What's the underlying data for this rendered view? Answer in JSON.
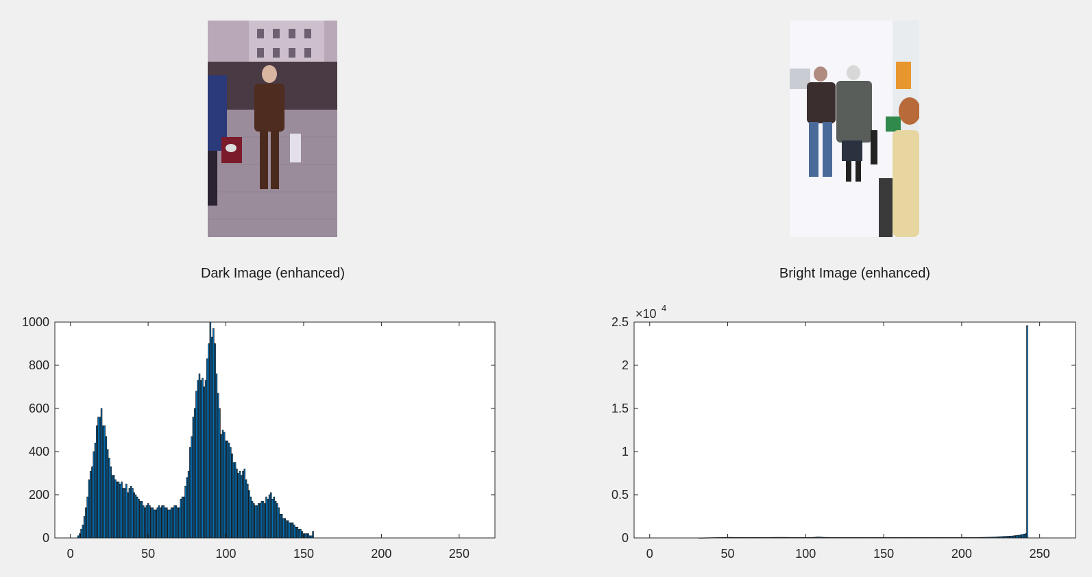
{
  "figure": {
    "subplots": [
      {
        "title": "Dark Image (enhanced)",
        "image": "dark street scene with pedestrians"
      },
      {
        "title": "Bright Image (enhanced)",
        "image": "overexposed street scene with elderly couple walking"
      }
    ]
  },
  "chart_data": [
    {
      "type": "bar",
      "title": "",
      "xlabel": "",
      "ylabel": "",
      "xlim": [
        -10,
        273
      ],
      "ylim": [
        0,
        1000
      ],
      "xticks": [
        0,
        50,
        100,
        150,
        200,
        250
      ],
      "yticks": [
        0,
        200,
        400,
        600,
        800,
        1000
      ],
      "ytick_labels": [
        "0",
        "200",
        "400",
        "600",
        "800",
        "1000"
      ],
      "x_start": 0,
      "values": [
        0,
        0,
        0,
        0,
        0,
        10,
        20,
        40,
        60,
        100,
        140,
        190,
        270,
        310,
        330,
        400,
        440,
        520,
        560,
        560,
        600,
        520,
        520,
        470,
        410,
        370,
        330,
        290,
        290,
        270,
        260,
        260,
        250,
        260,
        230,
        230,
        250,
        210,
        230,
        240,
        230,
        210,
        200,
        190,
        180,
        170,
        170,
        150,
        140,
        150,
        160,
        150,
        140,
        140,
        130,
        130,
        140,
        150,
        140,
        150,
        150,
        140,
        140,
        130,
        130,
        140,
        140,
        150,
        150,
        140,
        140,
        180,
        190,
        190,
        240,
        280,
        310,
        420,
        470,
        560,
        600,
        680,
        730,
        760,
        730,
        740,
        700,
        730,
        830,
        900,
        1000,
        930,
        970,
        900,
        760,
        670,
        600,
        480,
        500,
        490,
        450,
        450,
        440,
        420,
        390,
        350,
        350,
        320,
        300,
        310,
        290,
        310,
        320,
        270,
        250,
        220,
        190,
        170,
        160,
        150,
        150,
        160,
        160,
        170,
        170,
        160,
        190,
        180,
        200,
        210,
        180,
        190,
        170,
        160,
        140,
        110,
        110,
        90,
        90,
        80,
        80,
        70,
        70,
        70,
        60,
        50,
        50,
        40,
        40,
        30,
        20,
        20,
        20,
        20,
        10,
        10,
        30,
        0
      ]
    },
    {
      "type": "bar",
      "title": "",
      "xlabel": "",
      "ylabel": "",
      "y_exponent_label": "×10",
      "y_exponent": "4",
      "xlim": [
        -10,
        273
      ],
      "ylim": [
        0,
        25000
      ],
      "xticks": [
        0,
        50,
        100,
        150,
        200,
        250
      ],
      "yticks": [
        0,
        5000,
        10000,
        15000,
        20000,
        25000
      ],
      "ytick_labels": [
        "0",
        "0.5",
        "1",
        "1.5",
        "2",
        "2.5"
      ],
      "x_start": 0,
      "values": [
        0,
        0,
        0,
        0,
        0,
        0,
        0,
        0,
        0,
        0,
        0,
        0,
        0,
        0,
        0,
        0,
        0,
        0,
        0,
        0,
        0,
        0,
        0,
        0,
        0,
        0,
        0,
        0,
        0,
        0,
        0,
        0,
        10,
        12,
        15,
        20,
        22,
        25,
        30,
        32,
        35,
        40,
        42,
        45,
        48,
        50,
        55,
        58,
        60,
        62,
        80,
        70,
        65,
        64,
        62,
        60,
        58,
        60,
        62,
        60,
        58,
        56,
        55,
        54,
        55,
        56,
        58,
        60,
        62,
        60,
        58,
        56,
        54,
        52,
        50,
        52,
        55,
        58,
        60,
        62,
        64,
        66,
        68,
        70,
        72,
        70,
        68,
        66,
        64,
        62,
        60,
        58,
        56,
        55,
        54,
        53,
        52,
        51,
        50,
        50,
        52,
        54,
        56,
        58,
        60,
        70,
        85,
        100,
        120,
        110,
        95,
        80,
        70,
        65,
        60,
        58,
        56,
        54,
        52,
        50,
        50,
        50,
        50,
        50,
        50,
        50,
        50,
        50,
        50,
        50,
        50,
        50,
        50,
        50,
        50,
        50,
        50,
        50,
        50,
        50,
        50,
        50,
        50,
        50,
        50,
        50,
        50,
        50,
        50,
        50,
        50,
        50,
        50,
        50,
        50,
        50,
        50,
        50,
        50,
        50,
        50,
        50,
        50,
        50,
        50,
        50,
        50,
        50,
        50,
        50,
        50,
        50,
        50,
        50,
        50,
        50,
        50,
        50,
        50,
        50,
        50,
        50,
        50,
        50,
        50,
        50,
        50,
        50,
        50,
        50,
        50,
        50,
        50,
        50,
        50,
        50,
        50,
        50,
        50,
        50,
        50,
        50,
        50,
        50,
        50,
        50,
        50,
        50,
        50,
        50,
        50,
        55,
        60,
        65,
        70,
        75,
        80,
        85,
        90,
        95,
        100,
        110,
        120,
        130,
        140,
        150,
        160,
        170,
        180,
        190,
        200,
        210,
        220,
        240,
        260,
        280,
        300,
        330,
        360,
        400,
        450,
        500,
        24600
      ]
    }
  ]
}
